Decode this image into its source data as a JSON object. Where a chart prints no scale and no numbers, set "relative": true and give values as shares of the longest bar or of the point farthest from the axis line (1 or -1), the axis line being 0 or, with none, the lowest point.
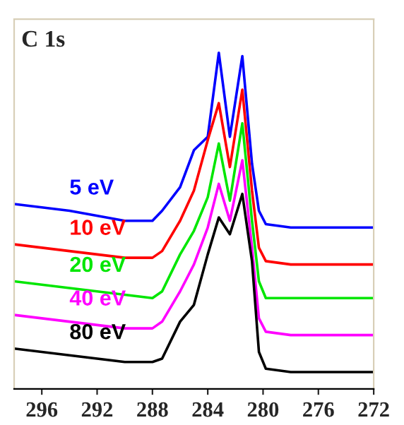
{
  "chart_data": {
    "type": "line",
    "title": "C 1s",
    "relative": true,
    "legend": false,
    "grid": false,
    "marker": "none",
    "line_style": "solid",
    "x": [
      298,
      294,
      290,
      288,
      287.3,
      286,
      285,
      284,
      283.2,
      282.4,
      281.5,
      280.8,
      280.3,
      279.8,
      278,
      272
    ],
    "xlim": [
      298,
      272
    ],
    "xticks": [
      296,
      292,
      288,
      284,
      280,
      276,
      272
    ],
    "series": [
      {
        "name": "5 eV",
        "color": "#0000ff",
        "values": [
          0.55,
          0.53,
          0.5,
          0.5,
          0.53,
          0.6,
          0.71,
          0.75,
          1.0,
          0.75,
          0.99,
          0.67,
          0.53,
          0.49,
          0.48,
          0.48
        ]
      },
      {
        "name": "10 eV",
        "color": "#ff0000",
        "values": [
          0.43,
          0.41,
          0.39,
          0.39,
          0.41,
          0.5,
          0.59,
          0.74,
          0.85,
          0.66,
          0.89,
          0.59,
          0.42,
          0.38,
          0.37,
          0.37
        ]
      },
      {
        "name": "20 eV",
        "color": "#00e600",
        "values": [
          0.32,
          0.3,
          0.28,
          0.27,
          0.29,
          0.4,
          0.47,
          0.57,
          0.73,
          0.56,
          0.79,
          0.5,
          0.32,
          0.27,
          0.27,
          0.27
        ]
      },
      {
        "name": "40 eV",
        "color": "#ff00ff",
        "values": [
          0.22,
          0.2,
          0.18,
          0.18,
          0.2,
          0.29,
          0.37,
          0.48,
          0.61,
          0.5,
          0.68,
          0.42,
          0.21,
          0.17,
          0.16,
          0.16
        ]
      },
      {
        "name": "80 eV",
        "color": "#000000",
        "values": [
          0.12,
          0.1,
          0.08,
          0.08,
          0.09,
          0.2,
          0.25,
          0.4,
          0.51,
          0.46,
          0.58,
          0.38,
          0.11,
          0.06,
          0.05,
          0.05
        ]
      }
    ]
  }
}
